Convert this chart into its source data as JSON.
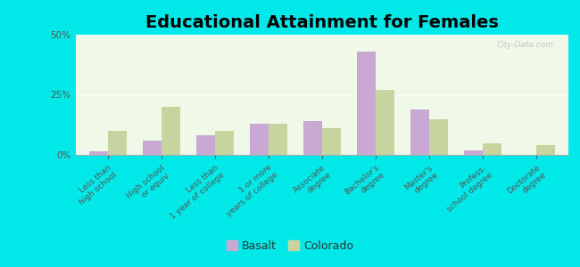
{
  "title": "Educational Attainment for Females",
  "categories": [
    "Less than\nhigh school",
    "High school\nor equiv.",
    "Less than\n1 year of college",
    "1 or more\nyears of college",
    "Associate\ndegree",
    "Bachelor's\ndegree",
    "Master's\ndegree",
    "Profess.\nschool degree",
    "Doctorate\ndegree"
  ],
  "basalt": [
    1.5,
    6.0,
    8.0,
    13.0,
    14.0,
    43.0,
    19.0,
    2.0,
    0.0
  ],
  "colorado": [
    10.0,
    20.0,
    10.0,
    13.0,
    11.0,
    27.0,
    15.0,
    5.0,
    4.0
  ],
  "basalt_color": "#c9a8d4",
  "colorado_color": "#c8d4a0",
  "plot_bg": "#f0f8e8",
  "outer_bg": "#00e8e8",
  "ylim": [
    0,
    50
  ],
  "yticks": [
    0,
    25,
    50
  ],
  "ytick_labels": [
    "0%",
    "25%",
    "50%"
  ],
  "watermark": "City-Data.com",
  "legend_labels": [
    "Basalt",
    "Colorado"
  ],
  "bar_width": 0.35,
  "title_fontsize": 14,
  "tick_fontsize": 6.5,
  "legend_fontsize": 9
}
